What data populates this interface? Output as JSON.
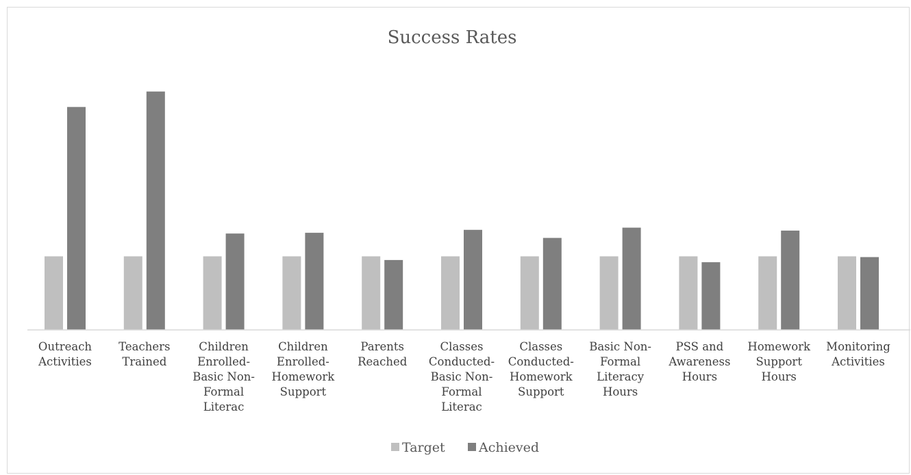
{
  "chart_data": {
    "type": "bar",
    "title": "Success Rates",
    "xlabel": "",
    "ylabel": "",
    "grid": false,
    "legend_position": "bottom",
    "ylim": [
      0,
      3.2
    ],
    "categories": [
      [
        "Outreach",
        "Activities"
      ],
      [
        "Teachers",
        "Trained"
      ],
      [
        "Children",
        "Enrolled-",
        "Basic Non-",
        "Formal",
        "Literac"
      ],
      [
        "Children",
        "Enrolled-",
        "Homework",
        "Support"
      ],
      [
        "Parents",
        "Reached"
      ],
      [
        "Classes",
        "Conducted-",
        "Basic Non-",
        "Formal",
        "Literac"
      ],
      [
        "Classes",
        "Conducted-",
        "Homework",
        "Support"
      ],
      [
        "Basic Non-",
        "Formal",
        "Literacy",
        "Hours"
      ],
      [
        "PSS and",
        "Awareness",
        "Hours"
      ],
      [
        "Homework",
        "Support",
        "Hours"
      ],
      [
        "Monitoring",
        "Activities"
      ]
    ],
    "series": [
      {
        "name": "Target",
        "color": "#bfbfbf",
        "values": [
          1,
          1,
          1,
          1,
          1,
          1,
          1,
          1,
          1,
          1,
          1
        ]
      },
      {
        "name": "Achieved",
        "color": "#7f7f7f",
        "values": [
          3.03,
          3.24,
          1.31,
          1.32,
          0.95,
          1.36,
          1.25,
          1.39,
          0.92,
          1.35,
          0.99
        ]
      }
    ]
  }
}
